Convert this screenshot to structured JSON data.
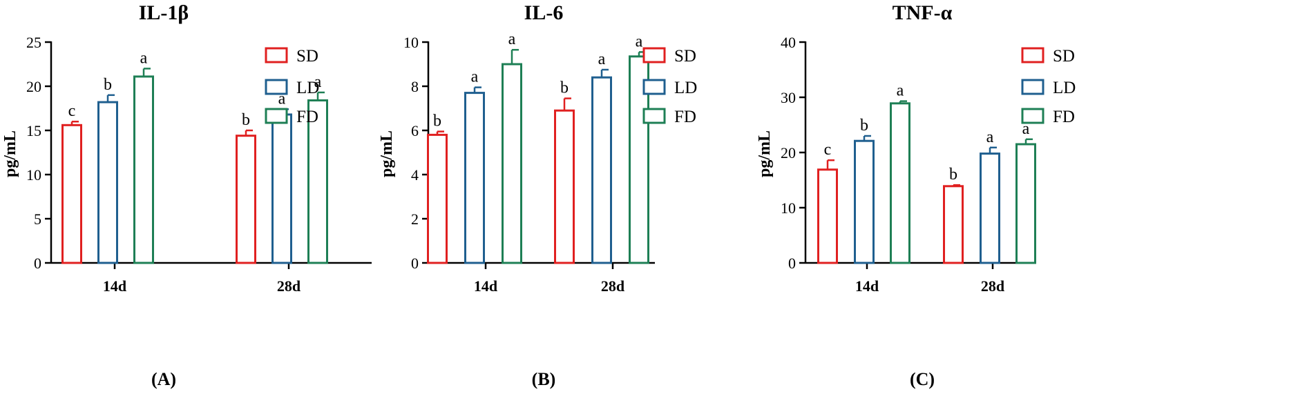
{
  "chart_data": [
    {
      "type": "bar",
      "title": "IL-1β",
      "panel_label": "(A)",
      "ylabel": "pg/mL",
      "xlabel": "",
      "ylim": [
        0,
        25
      ],
      "yticks": [
        0,
        5,
        10,
        15,
        20,
        25
      ],
      "categories": [
        "14d",
        "28d"
      ],
      "legend_position": "top-right",
      "series": [
        {
          "name": "SD",
          "color": "#e02020",
          "values": [
            15.6,
            14.4
          ],
          "errors": [
            0.4,
            0.6
          ],
          "labels": [
            "c",
            "b"
          ]
        },
        {
          "name": "LD",
          "color": "#1f5f8f",
          "values": [
            18.2,
            16.8
          ],
          "errors": [
            0.8,
            0.6
          ],
          "labels": [
            "b",
            "a"
          ]
        },
        {
          "name": "FD",
          "color": "#1e7f55",
          "values": [
            21.1,
            18.4
          ],
          "errors": [
            0.9,
            0.9
          ],
          "labels": [
            "a",
            "a"
          ]
        }
      ]
    },
    {
      "type": "bar",
      "title": "IL-6",
      "panel_label": "(B)",
      "ylabel": "pg/mL",
      "xlabel": "",
      "ylim": [
        0,
        10
      ],
      "yticks": [
        0,
        2,
        4,
        6,
        8,
        10
      ],
      "categories": [
        "14d",
        "28d"
      ],
      "legend_position": "top-right",
      "series": [
        {
          "name": "SD",
          "color": "#e02020",
          "values": [
            5.8,
            6.9
          ],
          "errors": [
            0.15,
            0.55
          ],
          "labels": [
            "b",
            "b"
          ]
        },
        {
          "name": "LD",
          "color": "#1f5f8f",
          "values": [
            7.7,
            8.4
          ],
          "errors": [
            0.25,
            0.35
          ],
          "labels": [
            "a",
            "a"
          ]
        },
        {
          "name": "FD",
          "color": "#1e7f55",
          "values": [
            9.0,
            9.35
          ],
          "errors": [
            0.65,
            0.2
          ],
          "labels": [
            "a",
            "a"
          ]
        }
      ]
    },
    {
      "type": "bar",
      "title": "TNF-α",
      "panel_label": "(C)",
      "ylabel": "pg/mL",
      "xlabel": "",
      "ylim": [
        0,
        40
      ],
      "yticks": [
        0,
        10,
        20,
        30,
        40
      ],
      "categories": [
        "14d",
        "28d"
      ],
      "legend_position": "top-right",
      "series": [
        {
          "name": "SD",
          "color": "#e02020",
          "values": [
            16.9,
            13.9
          ],
          "errors": [
            1.7,
            0.2
          ],
          "labels": [
            "c",
            "b"
          ]
        },
        {
          "name": "LD",
          "color": "#1f5f8f",
          "values": [
            22.1,
            19.8
          ],
          "errors": [
            0.9,
            1.1
          ],
          "labels": [
            "b",
            "a"
          ]
        },
        {
          "name": "FD",
          "color": "#1e7f55",
          "values": [
            28.9,
            21.5
          ],
          "errors": [
            0.4,
            0.9
          ],
          "labels": [
            "a",
            "a"
          ]
        }
      ]
    }
  ]
}
